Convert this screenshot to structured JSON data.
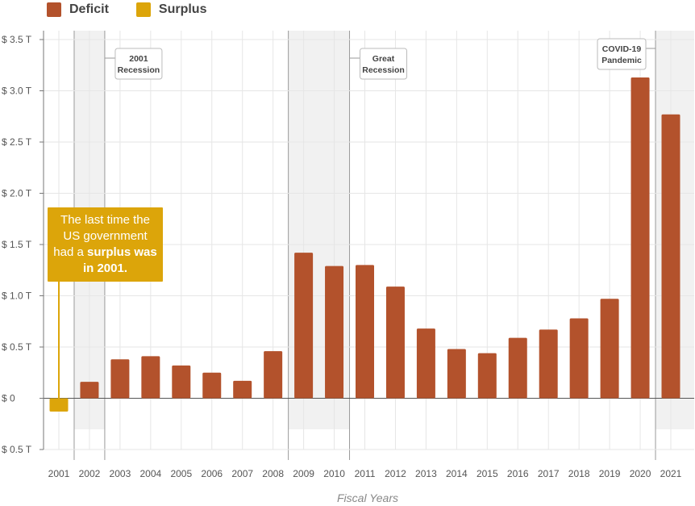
{
  "legend": {
    "deficit_label": "Deficit",
    "surplus_label": "Surplus"
  },
  "colors": {
    "deficit": "#b3522c",
    "surplus": "#dca50a",
    "recession_shade": "#f1f1f1",
    "grid": "#e6e6e6",
    "axis": "#555555"
  },
  "callout": {
    "lines": [
      [
        {
          "text": "The last time the",
          "bold": false
        }
      ],
      [
        {
          "text": "US government",
          "bold": false
        }
      ],
      [
        {
          "text": "had a ",
          "bold": false
        },
        {
          "text": "surplus was",
          "bold": true
        }
      ],
      [
        {
          "text": "in 2001.",
          "bold": true
        }
      ]
    ]
  },
  "chart_data": {
    "type": "bar",
    "xlabel": "Fiscal Years",
    "ylabel": "",
    "ylim": [
      -0.5,
      3.5
    ],
    "y_ticks": [
      {
        "value": 3.5,
        "label": "$ 3.5 T"
      },
      {
        "value": 3.0,
        "label": "$ 3.0 T"
      },
      {
        "value": 2.5,
        "label": "$ 2.5 T"
      },
      {
        "value": 2.0,
        "label": "$ 2.0 T"
      },
      {
        "value": 1.5,
        "label": "$ 1.5 T"
      },
      {
        "value": 1.0,
        "label": "$ 1.0 T"
      },
      {
        "value": 0.5,
        "label": "$ 0.5 T"
      },
      {
        "value": 0.0,
        "label": "$ 0"
      },
      {
        "value": -0.5,
        "label": "$ 0.5 T"
      }
    ],
    "categories": [
      "2001",
      "2002",
      "2003",
      "2004",
      "2005",
      "2006",
      "2007",
      "2008",
      "2009",
      "2010",
      "2011",
      "2012",
      "2013",
      "2014",
      "2015",
      "2016",
      "2017",
      "2018",
      "2019",
      "2020",
      "2021"
    ],
    "values": [
      -0.13,
      0.16,
      0.38,
      0.41,
      0.32,
      0.25,
      0.17,
      0.46,
      1.42,
      1.29,
      1.3,
      1.09,
      0.68,
      0.48,
      0.44,
      0.59,
      0.67,
      0.78,
      0.97,
      3.13,
      2.77
    ],
    "series": [
      {
        "name": "Deficit",
        "color": "#b3522c"
      },
      {
        "name": "Surplus",
        "color": "#dca50a"
      }
    ],
    "recessions": [
      {
        "label_lines": [
          "2001",
          "Recession"
        ],
        "start_year": "2001",
        "end_year": "2002"
      },
      {
        "label_lines": [
          "Great",
          "Recession"
        ],
        "start_year": "2008",
        "end_year": "2010"
      },
      {
        "label_lines": [
          "COVID-19",
          "Pandemic"
        ],
        "start_year": "2020",
        "end_year": "2021"
      }
    ],
    "grid": true,
    "legend_position": "top-left"
  }
}
